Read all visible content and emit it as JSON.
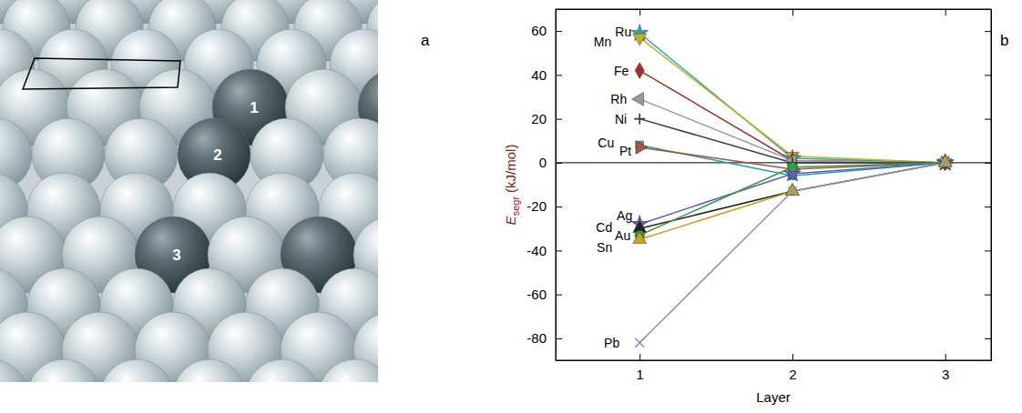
{
  "panel_labels": [
    "a",
    "b"
  ],
  "diagram": {
    "atom_labels": [
      "1",
      "2",
      "3"
    ]
  },
  "chart_data": {
    "type": "line",
    "xlabel": "Layer",
    "ylabel": {
      "symbol": "E",
      "subscript": "segr",
      "unit": "(kJ/mol)"
    },
    "x": [
      1,
      2,
      3
    ],
    "xlim": [
      0.45,
      3.3
    ],
    "xticks": [
      1,
      2,
      3
    ],
    "ylim": [
      -90,
      70
    ],
    "yticks": [
      -80,
      -60,
      -40,
      -20,
      0,
      20,
      40,
      60
    ],
    "hline": 0,
    "grid": false,
    "series": [
      {
        "name": "Ru",
        "color": "#2aa9c4",
        "marker": "star",
        "values": [
          59,
          2,
          0
        ]
      },
      {
        "name": "Mn",
        "color": "#c2b21c",
        "marker": "triangle-down",
        "values": [
          57,
          3,
          0
        ]
      },
      {
        "name": "Fe",
        "color": "#a3302c",
        "marker": "diamond",
        "values": [
          42,
          1,
          0
        ]
      },
      {
        "name": "Rh",
        "color": "#9a9a9a",
        "marker": "triangle-left",
        "values": [
          29,
          1,
          0
        ]
      },
      {
        "name": "Ni",
        "color": "#3a3a3a",
        "marker": "plus",
        "values": [
          20,
          0,
          0
        ]
      },
      {
        "name": "Cu",
        "color": "#1f9fb0",
        "marker": "square",
        "values": [
          8,
          -6,
          0
        ]
      },
      {
        "name": "Pt",
        "color": "#a4553a",
        "marker": "triangle-right",
        "values": [
          7,
          -3,
          0
        ]
      },
      {
        "name": "Ag",
        "color": "#5d5fbf",
        "marker": "star",
        "values": [
          -28,
          -5,
          0
        ]
      },
      {
        "name": "Cd",
        "color": "#222222",
        "marker": "triangle",
        "values": [
          -30,
          -13,
          0
        ]
      },
      {
        "name": "Au",
        "color": "#2f9e45",
        "marker": "circle",
        "values": [
          -33,
          -2,
          0
        ]
      },
      {
        "name": "Sn",
        "color": "#c9a21e",
        "marker": "triangle",
        "values": [
          -35,
          -13,
          0
        ]
      },
      {
        "name": "Pb",
        "color": "#8593c4",
        "marker": "x",
        "values": [
          -82,
          -13,
          0
        ]
      }
    ]
  }
}
